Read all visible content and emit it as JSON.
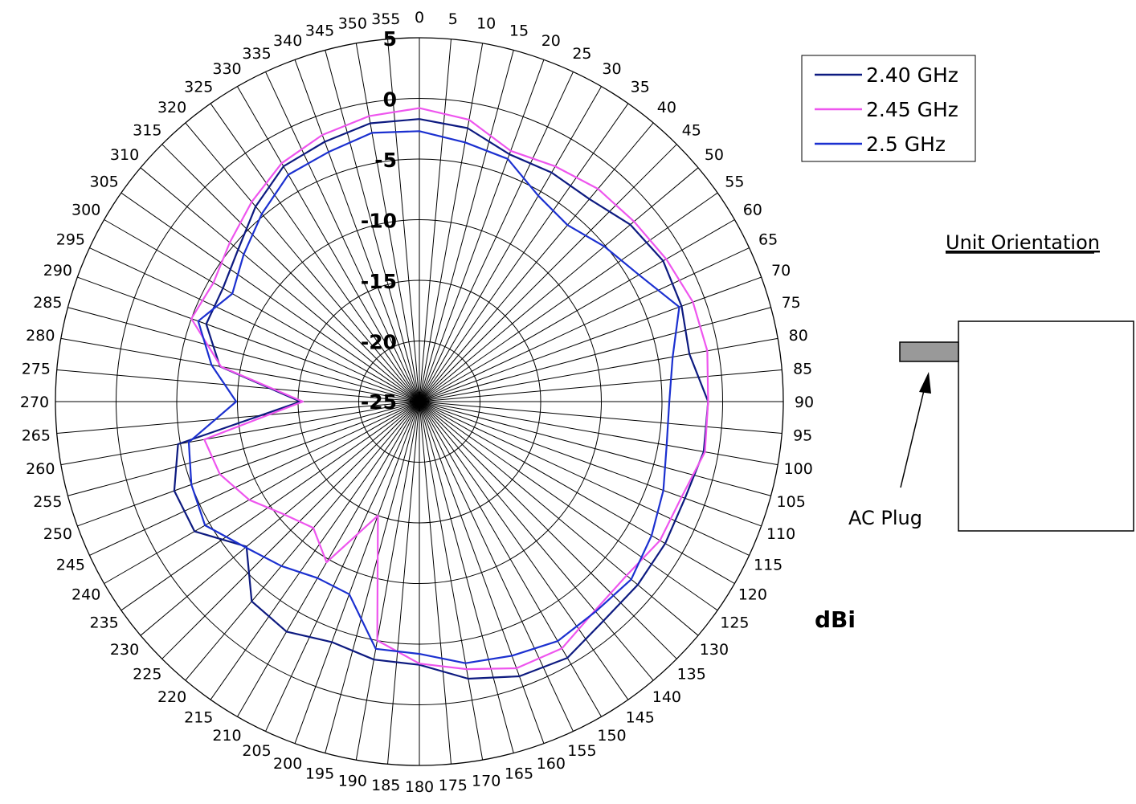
{
  "chart_data": {
    "type": "line",
    "polar": true,
    "angle_unit": "degrees",
    "angle_ticks": [
      0,
      5,
      10,
      15,
      20,
      25,
      30,
      35,
      40,
      45,
      50,
      55,
      60,
      65,
      70,
      75,
      80,
      85,
      90,
      95,
      100,
      105,
      110,
      115,
      120,
      125,
      130,
      135,
      140,
      145,
      150,
      155,
      160,
      165,
      170,
      175,
      180,
      185,
      190,
      195,
      200,
      205,
      210,
      215,
      220,
      225,
      230,
      235,
      240,
      245,
      250,
      255,
      260,
      265,
      270,
      275,
      280,
      285,
      290,
      295,
      300,
      305,
      310,
      315,
      320,
      325,
      330,
      335,
      340,
      345,
      350,
      355
    ],
    "radial_ticks": [
      5,
      0,
      -5,
      -10,
      -15,
      -20,
      -25
    ],
    "rlim": [
      -25,
      5
    ],
    "radial_label": "dBi",
    "grid": true,
    "legend_position": "top-right",
    "angles": [
      0,
      10,
      20,
      30,
      40,
      50,
      60,
      70,
      80,
      90,
      100,
      110,
      120,
      130,
      140,
      150,
      160,
      170,
      180,
      190,
      200,
      210,
      220,
      230,
      240,
      250,
      260,
      270,
      280,
      290,
      300,
      310,
      320,
      330,
      340,
      350
    ],
    "series": [
      {
        "name": "2.40 GHz",
        "color": "#0d1a80",
        "values": [
          -1.7,
          -2.1,
          -3.3,
          -3.2,
          -3.2,
          -2.3,
          -1.8,
          -2.0,
          -2.4,
          -1.2,
          -1.2,
          -1.7,
          -1.6,
          -1.5,
          -1.4,
          -0.6,
          -0.9,
          -1.8,
          -3.3,
          -3.4,
          -3.9,
          -3.1,
          -3.5,
          -6.4,
          -3.6,
          -3.5,
          -4.8,
          -15.2,
          -8.3,
          -6.3,
          -6.3,
          -5.5,
          -4.0,
          -2.6,
          -2.2,
          -1.7
        ]
      },
      {
        "name": "2.45 GHz",
        "color": "#ee55ee",
        "values": [
          -0.8,
          -1.4,
          -3.0,
          -2.6,
          -2.1,
          -1.9,
          -1.5,
          -1.0,
          -0.9,
          -1.2,
          -1.1,
          -2.0,
          -2.1,
          -2.7,
          -2.5,
          -1.5,
          -1.6,
          -2.6,
          -3.4,
          -5.0,
          -15.0,
          -9.7,
          -11.4,
          -10.5,
          -8.8,
          -7.5,
          -7.0,
          -15.4,
          -8.4,
          -5.0,
          -5.4,
          -4.6,
          -3.5,
          -2.3,
          -1.6,
          -1.1
        ]
      },
      {
        "name": "2.5 GHz",
        "color": "#1b30d0",
        "values": [
          -2.7,
          -3.3,
          -3.7,
          -5.4,
          -6.0,
          -5.1,
          -4.1,
          -2.2,
          -3.8,
          -4.4,
          -4.3,
          -3.6,
          -2.9,
          -2.2,
          -2.4,
          -2.2,
          -2.7,
          -3.1,
          -4.2,
          -4.3,
          -8.1,
          -8.2,
          -7.3,
          -6.3,
          -4.6,
          -5.0,
          -5.7,
          -9.9,
          -7.6,
          -5.6,
          -7.2,
          -6.1,
          -4.8,
          -3.4,
          -3.1,
          -2.5
        ]
      }
    ]
  },
  "unit_orientation": {
    "title": "Unit Orientation",
    "plug_label": "AC Plug"
  }
}
